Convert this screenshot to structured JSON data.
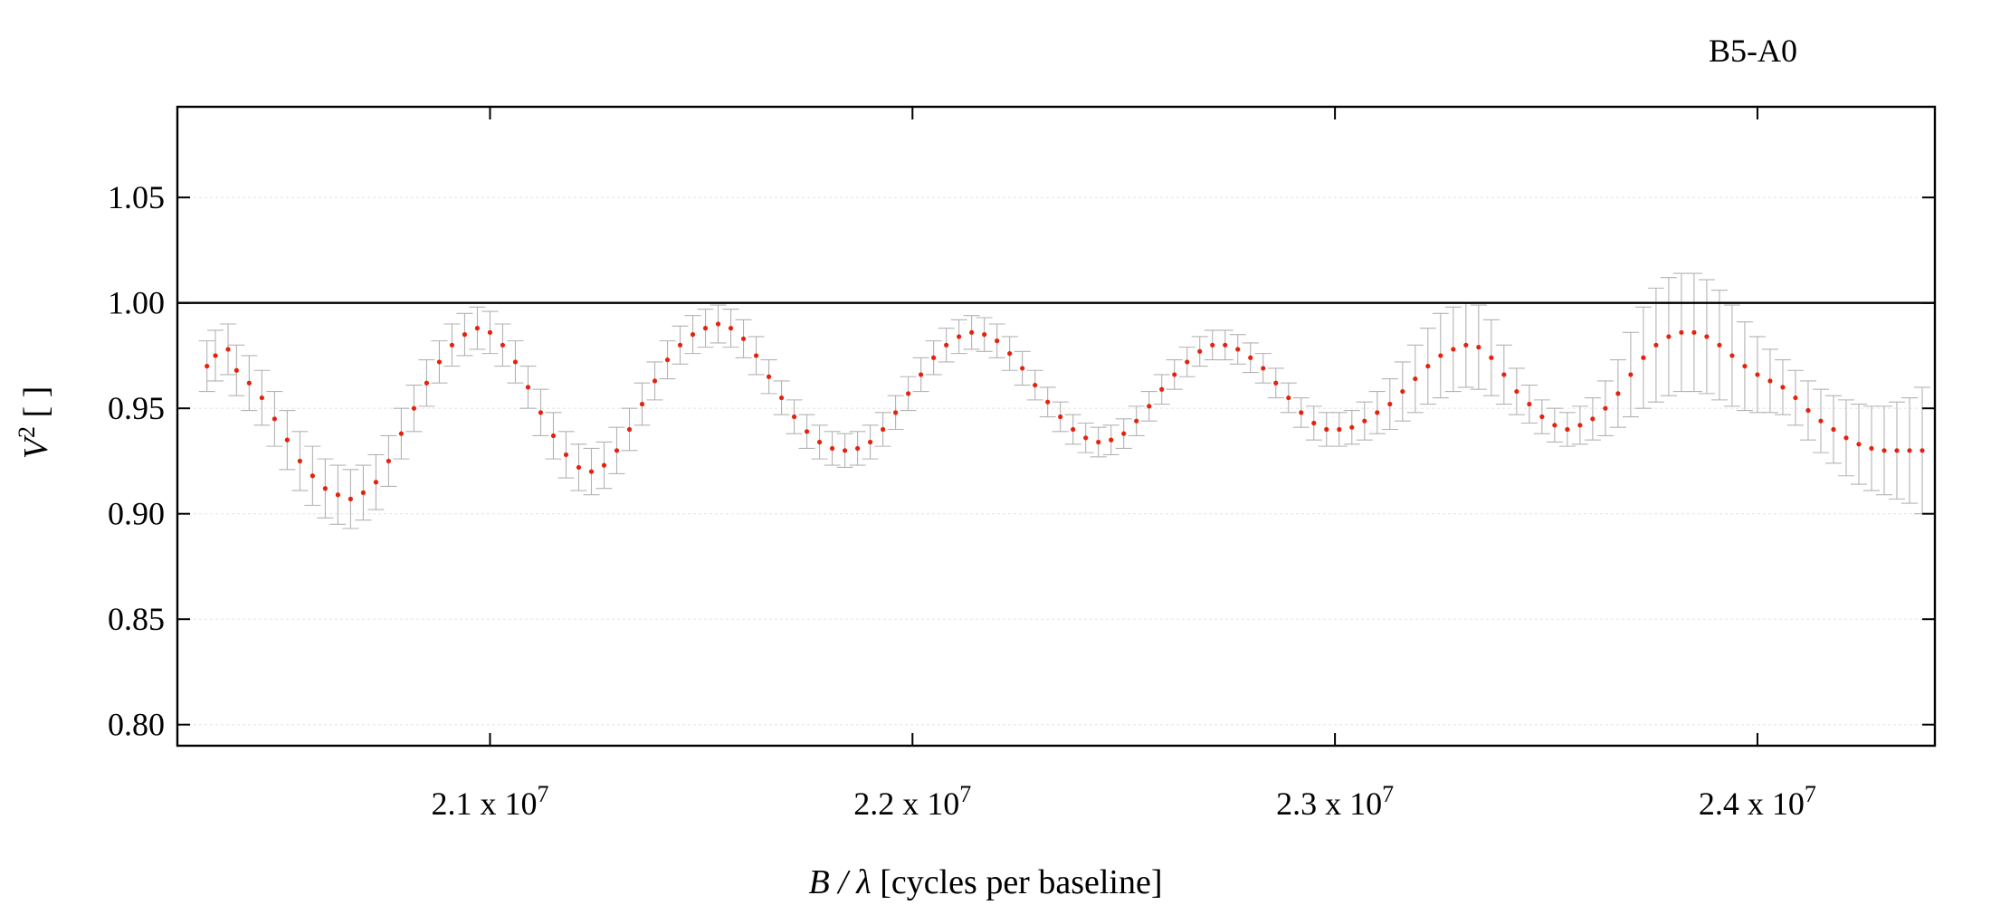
{
  "chart_data": {
    "type": "scatter",
    "title": "B5-A0",
    "xlabel_var": "B / λ",
    "xlabel_rest": "[cycles per baseline]",
    "ylabel_base": "V",
    "ylabel_sup": "2",
    "ylabel_rest": "[ ]",
    "xlim": [
      20260000,
      24420000
    ],
    "ylim": [
      0.79,
      1.093
    ],
    "x_ticks": [
      {
        "value": 21000000,
        "mant": "2.1 x 10",
        "exp": "7"
      },
      {
        "value": 22000000,
        "mant": "2.2 x 10",
        "exp": "7"
      },
      {
        "value": 23000000,
        "mant": "2.3 x 10",
        "exp": "7"
      },
      {
        "value": 24000000,
        "mant": "2.4 x 10",
        "exp": "7"
      }
    ],
    "y_ticks": [
      {
        "value": 0.8,
        "label": "0.80"
      },
      {
        "value": 0.85,
        "label": "0.85"
      },
      {
        "value": 0.9,
        "label": "0.90"
      },
      {
        "value": 0.95,
        "label": "0.95"
      },
      {
        "value": 1.0,
        "label": "1.00"
      },
      {
        "value": 1.05,
        "label": "1.05"
      }
    ],
    "reference_line": 1.0,
    "grid": "horizontal dotted",
    "colors": {
      "points": "#e8200c",
      "error_bars": "#b3b3b3",
      "frame": "#000000"
    },
    "series": [
      {
        "values": [
          [
            20330000,
            0.97,
            0.012
          ],
          [
            20350000,
            0.975,
            0.012
          ],
          [
            20380000,
            0.978,
            0.012
          ],
          [
            20400000,
            0.968,
            0.012
          ],
          [
            20430000,
            0.962,
            0.013
          ],
          [
            20460000,
            0.955,
            0.013
          ],
          [
            20490000,
            0.945,
            0.013
          ],
          [
            20520000,
            0.935,
            0.014
          ],
          [
            20550000,
            0.925,
            0.014
          ],
          [
            20580000,
            0.918,
            0.014
          ],
          [
            20610000,
            0.912,
            0.014
          ],
          [
            20640000,
            0.909,
            0.014
          ],
          [
            20670000,
            0.907,
            0.014
          ],
          [
            20700000,
            0.91,
            0.013
          ],
          [
            20730000,
            0.915,
            0.013
          ],
          [
            20760000,
            0.925,
            0.012
          ],
          [
            20790000,
            0.938,
            0.012
          ],
          [
            20820000,
            0.95,
            0.011
          ],
          [
            20850000,
            0.962,
            0.011
          ],
          [
            20880000,
            0.972,
            0.01
          ],
          [
            20910000,
            0.98,
            0.01
          ],
          [
            20940000,
            0.985,
            0.01
          ],
          [
            20970000,
            0.988,
            0.01
          ],
          [
            21000000,
            0.986,
            0.01
          ],
          [
            21030000,
            0.98,
            0.01
          ],
          [
            21060000,
            0.972,
            0.01
          ],
          [
            21090000,
            0.96,
            0.01
          ],
          [
            21120000,
            0.948,
            0.011
          ],
          [
            21150000,
            0.937,
            0.011
          ],
          [
            21180000,
            0.928,
            0.011
          ],
          [
            21210000,
            0.922,
            0.011
          ],
          [
            21240000,
            0.92,
            0.011
          ],
          [
            21270000,
            0.923,
            0.011
          ],
          [
            21300000,
            0.93,
            0.011
          ],
          [
            21330000,
            0.94,
            0.01
          ],
          [
            21360000,
            0.952,
            0.01
          ],
          [
            21390000,
            0.963,
            0.009
          ],
          [
            21420000,
            0.973,
            0.009
          ],
          [
            21450000,
            0.98,
            0.009
          ],
          [
            21480000,
            0.985,
            0.009
          ],
          [
            21510000,
            0.988,
            0.009
          ],
          [
            21540000,
            0.99,
            0.009
          ],
          [
            21570000,
            0.988,
            0.009
          ],
          [
            21600000,
            0.983,
            0.009
          ],
          [
            21630000,
            0.975,
            0.009
          ],
          [
            21660000,
            0.965,
            0.008
          ],
          [
            21690000,
            0.955,
            0.008
          ],
          [
            21720000,
            0.946,
            0.008
          ],
          [
            21750000,
            0.939,
            0.008
          ],
          [
            21780000,
            0.934,
            0.008
          ],
          [
            21810000,
            0.931,
            0.008
          ],
          [
            21840000,
            0.93,
            0.008
          ],
          [
            21870000,
            0.931,
            0.008
          ],
          [
            21900000,
            0.934,
            0.008
          ],
          [
            21930000,
            0.94,
            0.008
          ],
          [
            21960000,
            0.948,
            0.008
          ],
          [
            21990000,
            0.957,
            0.008
          ],
          [
            22020000,
            0.966,
            0.008
          ],
          [
            22050000,
            0.974,
            0.008
          ],
          [
            22080000,
            0.98,
            0.008
          ],
          [
            22110000,
            0.984,
            0.008
          ],
          [
            22140000,
            0.986,
            0.008
          ],
          [
            22170000,
            0.985,
            0.008
          ],
          [
            22200000,
            0.982,
            0.008
          ],
          [
            22230000,
            0.976,
            0.008
          ],
          [
            22260000,
            0.969,
            0.008
          ],
          [
            22290000,
            0.961,
            0.007
          ],
          [
            22320000,
            0.953,
            0.007
          ],
          [
            22350000,
            0.946,
            0.007
          ],
          [
            22380000,
            0.94,
            0.007
          ],
          [
            22410000,
            0.936,
            0.007
          ],
          [
            22440000,
            0.934,
            0.007
          ],
          [
            22470000,
            0.935,
            0.007
          ],
          [
            22500000,
            0.938,
            0.007
          ],
          [
            22530000,
            0.944,
            0.007
          ],
          [
            22560000,
            0.951,
            0.007
          ],
          [
            22590000,
            0.959,
            0.007
          ],
          [
            22620000,
            0.966,
            0.007
          ],
          [
            22650000,
            0.972,
            0.007
          ],
          [
            22680000,
            0.977,
            0.007
          ],
          [
            22710000,
            0.98,
            0.007
          ],
          [
            22740000,
            0.98,
            0.007
          ],
          [
            22770000,
            0.978,
            0.007
          ],
          [
            22800000,
            0.974,
            0.007
          ],
          [
            22830000,
            0.969,
            0.007
          ],
          [
            22860000,
            0.962,
            0.007
          ],
          [
            22890000,
            0.955,
            0.007
          ],
          [
            22920000,
            0.948,
            0.007
          ],
          [
            22950000,
            0.943,
            0.008
          ],
          [
            22980000,
            0.94,
            0.008
          ],
          [
            23010000,
            0.94,
            0.008
          ],
          [
            23040000,
            0.941,
            0.008
          ],
          [
            23070000,
            0.944,
            0.009
          ],
          [
            23100000,
            0.948,
            0.01
          ],
          [
            23130000,
            0.952,
            0.012
          ],
          [
            23160000,
            0.958,
            0.014
          ],
          [
            23190000,
            0.964,
            0.016
          ],
          [
            23220000,
            0.97,
            0.018
          ],
          [
            23250000,
            0.975,
            0.02
          ],
          [
            23280000,
            0.978,
            0.02
          ],
          [
            23310000,
            0.98,
            0.02
          ],
          [
            23340000,
            0.979,
            0.02
          ],
          [
            23370000,
            0.974,
            0.018
          ],
          [
            23400000,
            0.966,
            0.014
          ],
          [
            23430000,
            0.958,
            0.011
          ],
          [
            23460000,
            0.952,
            0.009
          ],
          [
            23490000,
            0.946,
            0.008
          ],
          [
            23520000,
            0.942,
            0.008
          ],
          [
            23550000,
            0.94,
            0.008
          ],
          [
            23580000,
            0.942,
            0.009
          ],
          [
            23610000,
            0.945,
            0.01
          ],
          [
            23640000,
            0.95,
            0.013
          ],
          [
            23670000,
            0.957,
            0.016
          ],
          [
            23700000,
            0.966,
            0.02
          ],
          [
            23730000,
            0.974,
            0.024
          ],
          [
            23760000,
            0.98,
            0.027
          ],
          [
            23790000,
            0.984,
            0.028
          ],
          [
            23820000,
            0.986,
            0.028
          ],
          [
            23850000,
            0.986,
            0.028
          ],
          [
            23880000,
            0.984,
            0.027
          ],
          [
            23910000,
            0.98,
            0.026
          ],
          [
            23940000,
            0.975,
            0.024
          ],
          [
            23970000,
            0.97,
            0.021
          ],
          [
            24000000,
            0.966,
            0.018
          ],
          [
            24030000,
            0.963,
            0.015
          ],
          [
            24060000,
            0.96,
            0.013
          ],
          [
            24090000,
            0.955,
            0.013
          ],
          [
            24120000,
            0.949,
            0.014
          ],
          [
            24150000,
            0.944,
            0.015
          ],
          [
            24180000,
            0.94,
            0.016
          ],
          [
            24210000,
            0.936,
            0.018
          ],
          [
            24240000,
            0.933,
            0.019
          ],
          [
            24270000,
            0.931,
            0.02
          ],
          [
            24300000,
            0.93,
            0.021
          ],
          [
            24330000,
            0.93,
            0.023
          ],
          [
            24360000,
            0.93,
            0.025
          ],
          [
            24390000,
            0.93,
            0.03
          ]
        ]
      }
    ]
  }
}
